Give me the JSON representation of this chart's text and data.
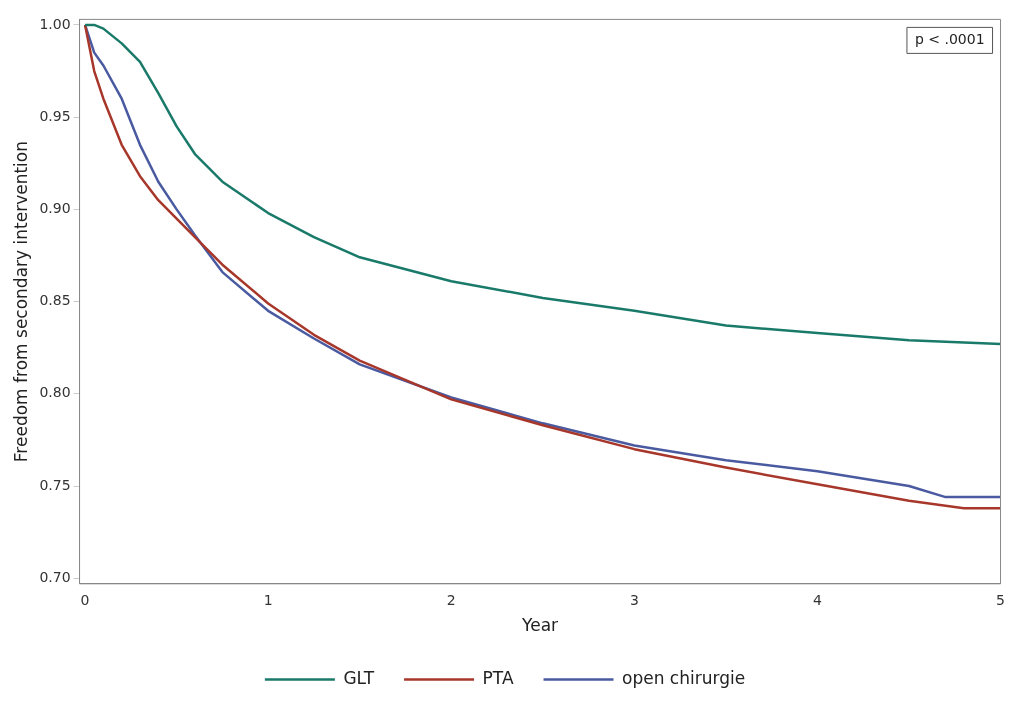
{
  "chart_data": {
    "type": "line",
    "xlabel": "Year",
    "ylabel": "Freedom from secondary intervention",
    "annotations": [
      "p < .0001"
    ],
    "xlim": [
      -0.03,
      5.0
    ],
    "xticks": [
      0,
      1,
      2,
      3,
      4,
      5
    ],
    "ylim": [
      0.697,
      1.003
    ],
    "yticks": [
      {
        "value": 0.7,
        "label": "0.70"
      },
      0.75,
      {
        "value": 0.8,
        "label": "0.80"
      },
      0.85,
      {
        "value": 0.9,
        "label": "0.90"
      },
      0.95,
      {
        "value": 1,
        "label": "1.00"
      }
    ],
    "grid": false,
    "legend": "bottom",
    "marker": "none",
    "line_style": "solid",
    "series": [
      {
        "name": "GLT",
        "color": "#1a7a6a",
        "x": [
          0,
          0.05,
          0.1,
          0.2,
          0.3,
          0.4,
          0.5,
          0.6,
          0.75,
          1,
          1.25,
          1.5,
          2,
          2.5,
          3,
          3.5,
          4,
          4.5,
          5
        ],
        "values": [
          1.0,
          1.0,
          0.998,
          0.99,
          0.98,
          0.963,
          0.945,
          0.93,
          0.915,
          0.898,
          0.885,
          0.874,
          0.861,
          0.852,
          0.845,
          0.837,
          0.833,
          0.829,
          0.827
        ]
      },
      {
        "name": "PTA",
        "color": "#a8372b",
        "x": [
          0,
          0.05,
          0.1,
          0.2,
          0.3,
          0.4,
          0.5,
          0.6,
          0.75,
          1,
          1.25,
          1.5,
          2,
          2.5,
          3,
          3.5,
          4,
          4.5,
          4.8,
          5
        ],
        "values": [
          1.0,
          0.975,
          0.96,
          0.935,
          0.918,
          0.905,
          0.895,
          0.885,
          0.87,
          0.849,
          0.832,
          0.818,
          0.797,
          0.783,
          0.77,
          0.76,
          0.751,
          0.742,
          0.738,
          0.738
        ]
      },
      {
        "name": "open chirurgie",
        "color": "#4a5aa0",
        "x": [
          0,
          0.05,
          0.1,
          0.2,
          0.3,
          0.4,
          0.5,
          0.6,
          0.75,
          1,
          1.25,
          1.5,
          2,
          2.5,
          3,
          3.5,
          4,
          4.5,
          4.7,
          5
        ],
        "values": [
          1.0,
          0.985,
          0.978,
          0.96,
          0.935,
          0.915,
          0.9,
          0.886,
          0.866,
          0.845,
          0.83,
          0.816,
          0.798,
          0.784,
          0.772,
          0.764,
          0.758,
          0.75,
          0.744,
          0.744
        ]
      }
    ]
  }
}
